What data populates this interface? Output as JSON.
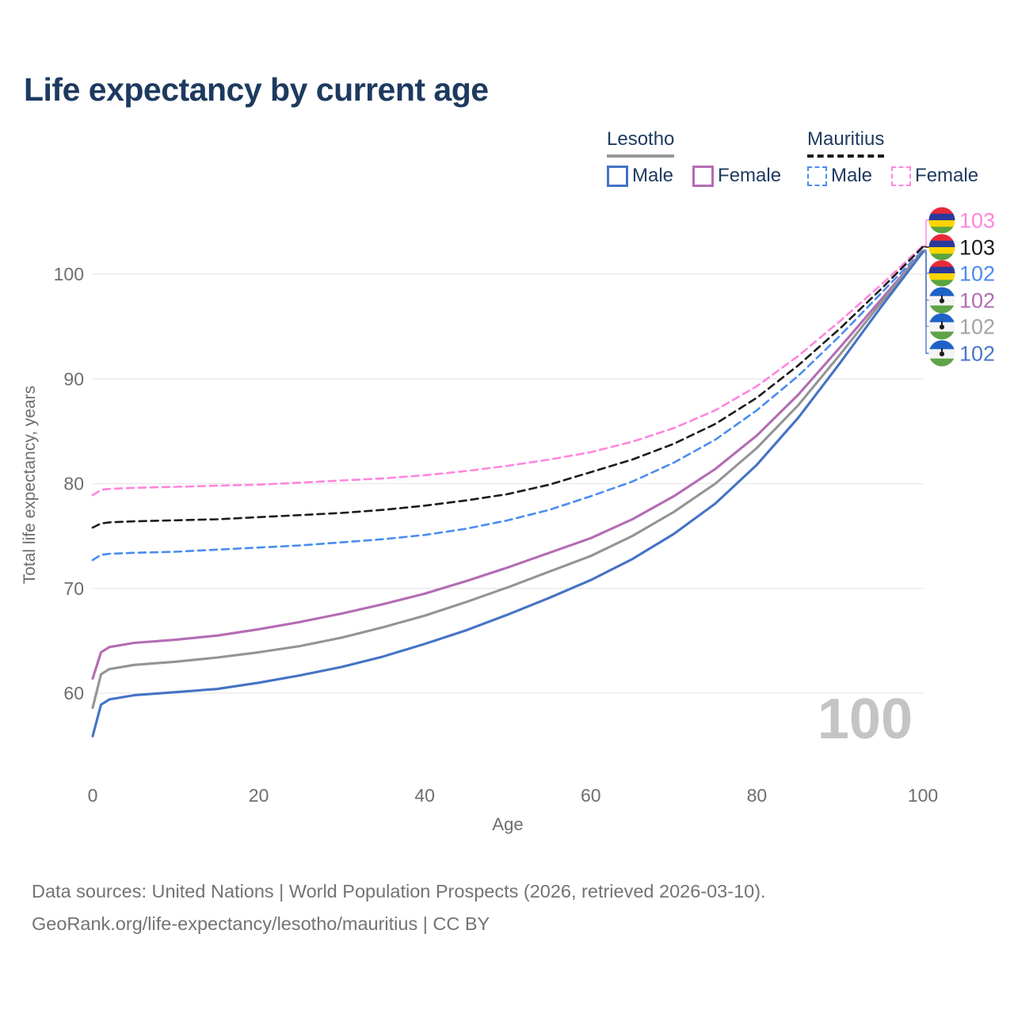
{
  "title": "Life expectancy by current age",
  "watermark": "100",
  "legend": {
    "groups": [
      {
        "country": "Lesotho",
        "line_style": "solid",
        "underline_color": "#999999",
        "items": [
          {
            "label": "Male",
            "color": "#4473c5"
          },
          {
            "label": "Female",
            "color": "#b36cb3"
          }
        ]
      },
      {
        "country": "Mauritius",
        "line_style": "dashed",
        "underline_color": "#1c1c1c",
        "items": [
          {
            "label": "Male",
            "color": "#4a8cf0"
          },
          {
            "label": "Female",
            "color": "#ff85dd"
          }
        ]
      }
    ]
  },
  "axes": {
    "x": {
      "title": "Age",
      "ticks": [
        0,
        20,
        40,
        60,
        80,
        100
      ]
    },
    "y": {
      "title": "Total life expectancy, years",
      "ticks": [
        60,
        70,
        80,
        90,
        100
      ]
    }
  },
  "end_labels": [
    {
      "value": "103",
      "flag": "mauritius",
      "color": "#ff85dd",
      "series": "Mauritius Female"
    },
    {
      "value": "103",
      "flag": "mauritius",
      "color": "#1c1c1c",
      "series": "Mauritius Both sexes"
    },
    {
      "value": "102",
      "flag": "mauritius",
      "color": "#4a8cf0",
      "series": "Mauritius Male"
    },
    {
      "value": "102",
      "flag": "lesotho",
      "color": "#b36cb3",
      "series": "Lesotho Female"
    },
    {
      "value": "102",
      "flag": "lesotho",
      "color": "#a3a3a3",
      "series": "Lesotho Both sexes"
    },
    {
      "value": "102",
      "flag": "lesotho",
      "color": "#4b77c9",
      "series": "Lesotho Male"
    }
  ],
  "flags": {
    "mauritius": {
      "stripes": [
        "#e8293a",
        "#2a3a9b",
        "#ffd500",
        "#58a43f"
      ]
    },
    "lesotho": {
      "stripes": [
        "#1e62c8",
        "#f4f4f4",
        "#5fa348"
      ],
      "emblem": "#1c1c1c"
    }
  },
  "footer": {
    "line1": "Data sources: United Nations | World Population Prospects (2026, retrieved 2026-03-10).",
    "line2": "GeoRank.org/life-expectancy/lesotho/mauritius | CC BY"
  },
  "chart_data": {
    "type": "line",
    "title": "Life expectancy by current age",
    "xlabel": "Age",
    "ylabel": "Total life expectancy, years",
    "xlim": [
      0,
      100
    ],
    "ylim": [
      55,
      104
    ],
    "grid": "horizontal",
    "legend_position": "top-right",
    "x": [
      0,
      1,
      2,
      5,
      10,
      15,
      20,
      25,
      30,
      35,
      40,
      45,
      50,
      55,
      60,
      65,
      70,
      75,
      80,
      85,
      90,
      95,
      100
    ],
    "series": [
      {
        "name": "Mauritius Female",
        "country": "Mauritius",
        "sex": "female",
        "style": "dashed",
        "color": "#ff85dd",
        "end_label": "103",
        "values": [
          78.9,
          79.4,
          79.5,
          79.6,
          79.7,
          79.8,
          79.9,
          80.1,
          80.3,
          80.5,
          80.8,
          81.2,
          81.7,
          82.3,
          83.0,
          84.0,
          85.3,
          87.0,
          89.3,
          92.2,
          95.5,
          99.0,
          102.7
        ]
      },
      {
        "name": "Mauritius Both sexes",
        "country": "Mauritius",
        "sex": "both",
        "style": "dashed",
        "color": "#1c1c1c",
        "end_label": "103",
        "values": [
          75.8,
          76.2,
          76.3,
          76.4,
          76.5,
          76.6,
          76.8,
          77.0,
          77.2,
          77.5,
          77.9,
          78.4,
          79.0,
          79.9,
          81.1,
          82.3,
          83.8,
          85.7,
          88.2,
          91.3,
          94.8,
          98.6,
          102.6
        ]
      },
      {
        "name": "Mauritius Male",
        "country": "Mauritius",
        "sex": "male",
        "style": "dashed",
        "color": "#4a8cf0",
        "end_label": "102",
        "values": [
          72.7,
          73.2,
          73.3,
          73.4,
          73.5,
          73.7,
          73.9,
          74.1,
          74.4,
          74.7,
          75.1,
          75.7,
          76.5,
          77.5,
          78.8,
          80.2,
          82.0,
          84.2,
          87.0,
          90.3,
          94.1,
          98.2,
          102.3
        ]
      },
      {
        "name": "Lesotho Female",
        "country": "Lesotho",
        "sex": "female",
        "style": "solid",
        "color": "#b36cb3",
        "end_label": "102",
        "values": [
          61.4,
          63.9,
          64.4,
          64.8,
          65.1,
          65.5,
          66.1,
          66.8,
          67.6,
          68.5,
          69.5,
          70.7,
          72.0,
          73.4,
          74.8,
          76.6,
          78.8,
          81.4,
          84.6,
          88.5,
          93.0,
          97.6,
          102.2
        ]
      },
      {
        "name": "Lesotho Both sexes",
        "country": "Lesotho",
        "sex": "both",
        "style": "solid",
        "color": "#949494",
        "end_label": "102",
        "values": [
          58.6,
          61.8,
          62.3,
          62.7,
          63.0,
          63.4,
          63.9,
          64.5,
          65.3,
          66.3,
          67.4,
          68.7,
          70.1,
          71.6,
          73.1,
          75.0,
          77.3,
          80.0,
          83.4,
          87.5,
          92.3,
          97.3,
          102.2
        ]
      },
      {
        "name": "Lesotho Male",
        "country": "Lesotho",
        "sex": "male",
        "style": "solid",
        "color": "#4473c5",
        "end_label": "102",
        "values": [
          55.9,
          58.9,
          59.4,
          59.8,
          60.1,
          60.4,
          61.0,
          61.7,
          62.5,
          63.5,
          64.7,
          66.0,
          67.5,
          69.1,
          70.8,
          72.8,
          75.2,
          78.1,
          81.8,
          86.3,
          91.5,
          96.9,
          102.1
        ]
      }
    ]
  }
}
